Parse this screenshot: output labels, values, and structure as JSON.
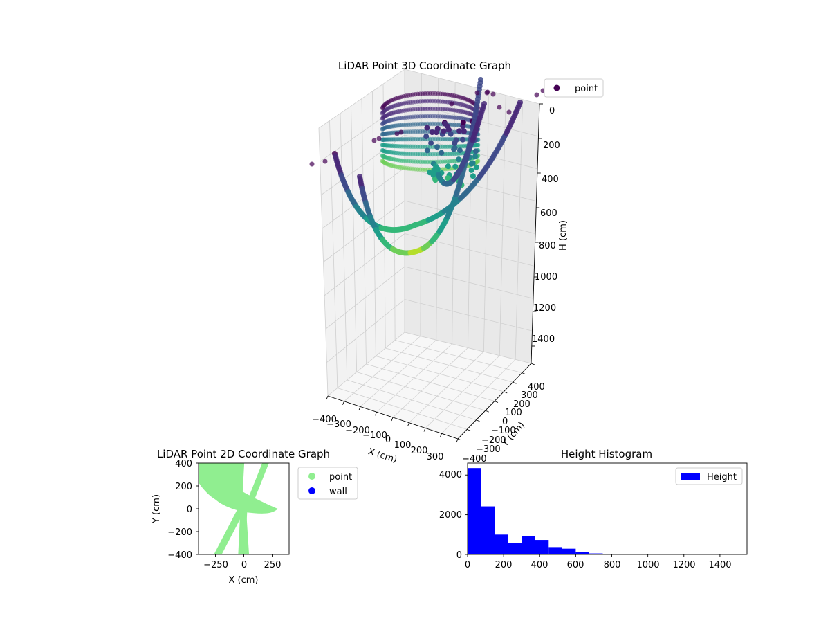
{
  "chart_data": [
    {
      "type": "scatter",
      "projection": "3d",
      "title": "LiDAR Point 3D Coordinate Graph",
      "xlabel": "X (cm)",
      "ylabel": "Y (cm)",
      "zlabel": "H (cm)",
      "xlim": [
        -400,
        400
      ],
      "ylim": [
        -400,
        400
      ],
      "zlim": [
        1500,
        0
      ],
      "x_ticks": [
        "−400",
        "−300",
        "−200",
        "−100",
        "0",
        "100",
        "200",
        "300"
      ],
      "y_ticks": [
        "−400",
        "−300",
        "−200",
        "−100",
        "0",
        "100",
        "200",
        "300",
        "400"
      ],
      "z_ticks": [
        "0",
        "200",
        "400",
        "600",
        "800",
        "1000",
        "1200",
        "1400"
      ],
      "colormap": "viridis",
      "grid": true,
      "legend": {
        "position": "upper-right",
        "entries": [
          {
            "label": "point",
            "color": "#440154"
          }
        ]
      },
      "series": [
        {
          "name": "point",
          "shape_note": "cylindrical curtain of points around the sensor plus two arcing strands",
          "approx_cluster": {
            "x_range": [
              -150,
              200
            ],
            "y_range": [
              -150,
              150
            ],
            "h_range": [
              0,
              700
            ]
          }
        }
      ]
    },
    {
      "type": "scatter",
      "title": "LiDAR Point 2D Coordinate Graph",
      "xlabel": "X (cm)",
      "ylabel": "Y (cm)",
      "xlim": [
        -400,
        400
      ],
      "ylim": [
        -400,
        400
      ],
      "x_ticks": [
        "−250",
        "0",
        "250"
      ],
      "y_ticks": [
        "400",
        "200",
        "0",
        "−200",
        "−400"
      ],
      "legend": {
        "position": "outside-right",
        "entries": [
          {
            "label": "point",
            "color": "#90ee90"
          },
          {
            "label": "wall",
            "color": "#0000ff"
          }
        ]
      }
    },
    {
      "type": "bar",
      "title": "Height Histogram",
      "xlabel": "",
      "ylabel": "",
      "xlim": [
        0,
        1550
      ],
      "ylim": [
        0,
        4600
      ],
      "bin_edges": [
        0,
        75,
        150,
        225,
        300,
        375,
        450,
        525,
        600,
        675,
        750
      ],
      "values": [
        4350,
        2420,
        1000,
        560,
        930,
        730,
        370,
        290,
        130,
        50
      ],
      "x_ticks": [
        "0",
        "200",
        "400",
        "600",
        "800",
        "1000",
        "1200",
        "1400"
      ],
      "y_ticks": [
        "0",
        "2000",
        "4000"
      ],
      "bar_color": "#0000ff",
      "legend": {
        "position": "upper-right",
        "entries": [
          {
            "label": "Height",
            "color": "#0000ff"
          }
        ]
      }
    }
  ]
}
